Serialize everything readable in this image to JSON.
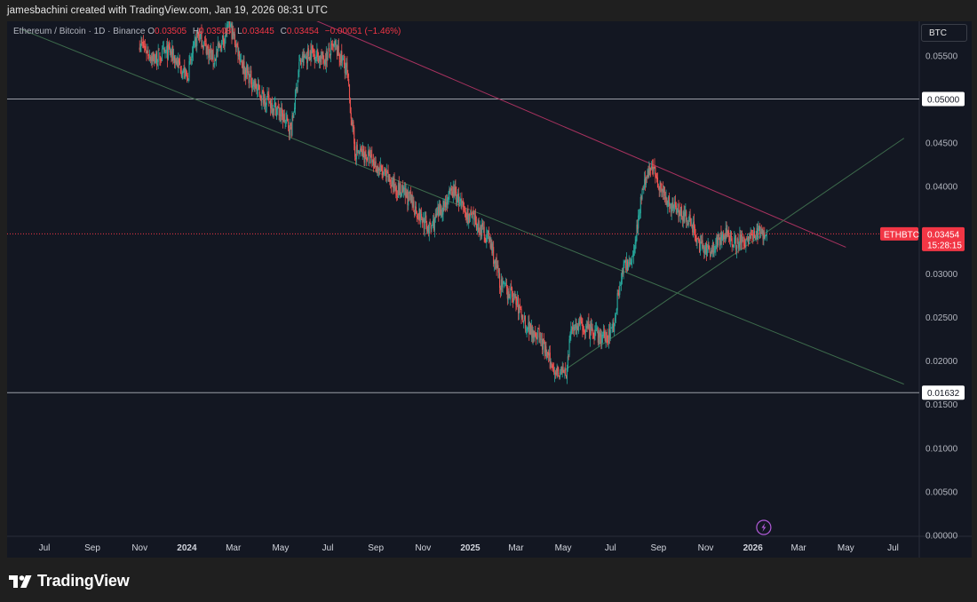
{
  "header": {
    "attribution": "jamesbachini created with TradingView.com, Jan 19, 2026 08:31 UTC"
  },
  "legend": {
    "symbol": "Ethereum / Bitcoin · 1D · Binance",
    "open_label": "O",
    "open": "0.03505",
    "high_label": "H",
    "high": "0.03508",
    "low_label": "L",
    "low": "0.03445",
    "close_label": "C",
    "close": "0.03454",
    "change": "−0.00051 (−1.46%)"
  },
  "currency_button": "BTC",
  "price_tag": {
    "symbol": "ETHBTC",
    "price": "0.03454",
    "countdown": "15:28:15"
  },
  "level_tags": [
    "0.05000",
    "0.01632"
  ],
  "brand": {
    "name": "TradingView"
  },
  "colors": {
    "up": "#26a69a",
    "down": "#ef5350",
    "bg": "#131722",
    "resistance_line": "#a8325f",
    "support_line": "#3d6b4c",
    "horizontal_line": "#c9ccd4",
    "price_line": "#f23645"
  },
  "chart_data": {
    "type": "candlestick",
    "title": "Ethereum / Bitcoin · 1D · Binance",
    "ylim": [
      0,
      0.06
    ],
    "y_ticks": [
      "0.05500",
      "0.04500",
      "0.04000",
      "0.03000",
      "0.02500",
      "0.02000",
      "0.01500",
      "0.01000",
      "0.00500",
      "0.00000"
    ],
    "y_tick_values": [
      0.055,
      0.045,
      0.04,
      0.03,
      0.025,
      0.02,
      0.015,
      0.01,
      0.005,
      0
    ],
    "x_ticks": [
      "Jul",
      "Sep",
      "Nov",
      "2024",
      "Mar",
      "May",
      "Jul",
      "Sep",
      "Nov",
      "2025",
      "Mar",
      "May",
      "Jul",
      "Sep",
      "Nov",
      "2026",
      "Mar",
      "May",
      "Jul"
    ],
    "x_tick_dates": [
      "2023-07-01",
      "2023-09-01",
      "2023-11-01",
      "2024-01-01",
      "2024-03-01",
      "2024-05-01",
      "2024-07-01",
      "2024-09-01",
      "2024-11-01",
      "2025-01-01",
      "2025-03-01",
      "2025-05-01",
      "2025-07-01",
      "2025-09-01",
      "2025-11-01",
      "2026-01-01",
      "2026-03-01",
      "2026-05-01",
      "2026-07-01"
    ],
    "x_tick_bold": [
      "2024",
      "2025",
      "2026"
    ],
    "price_path": [
      [
        "2023-11-01",
        0.0565
      ],
      [
        "2023-11-20",
        0.0545
      ],
      [
        "2023-12-10",
        0.0555
      ],
      [
        "2024-01-01",
        0.0525
      ],
      [
        "2024-01-15",
        0.0575
      ],
      [
        "2024-02-05",
        0.0545
      ],
      [
        "2024-02-25",
        0.0585
      ],
      [
        "2024-03-15",
        0.0535
      ],
      [
        "2024-04-05",
        0.0505
      ],
      [
        "2024-04-25",
        0.049
      ],
      [
        "2024-05-15",
        0.0465
      ],
      [
        "2024-05-25",
        0.054
      ],
      [
        "2024-06-10",
        0.0555
      ],
      [
        "2024-06-25",
        0.0545
      ],
      [
        "2024-07-10",
        0.056
      ],
      [
        "2024-07-25",
        0.0535
      ],
      [
        "2024-08-05",
        0.044
      ],
      [
        "2024-08-20",
        0.0435
      ],
      [
        "2024-09-05",
        0.042
      ],
      [
        "2024-09-25",
        0.04
      ],
      [
        "2024-10-15",
        0.0385
      ],
      [
        "2024-10-28",
        0.0365
      ],
      [
        "2024-11-10",
        0.035
      ],
      [
        "2024-11-25",
        0.0375
      ],
      [
        "2024-12-10",
        0.0395
      ],
      [
        "2024-12-25",
        0.037
      ],
      [
        "2025-01-10",
        0.0355
      ],
      [
        "2025-01-25",
        0.034
      ],
      [
        "2025-02-10",
        0.0285
      ],
      [
        "2025-02-25",
        0.0275
      ],
      [
        "2025-03-15",
        0.024
      ],
      [
        "2025-03-30",
        0.023
      ],
      [
        "2025-04-15",
        0.0195
      ],
      [
        "2025-04-25",
        0.0188
      ],
      [
        "2025-05-05",
        0.0185
      ],
      [
        "2025-05-12",
        0.024
      ],
      [
        "2025-05-25",
        0.024
      ],
      [
        "2025-06-10",
        0.023
      ],
      [
        "2025-06-25",
        0.0225
      ],
      [
        "2025-07-05",
        0.024
      ],
      [
        "2025-07-15",
        0.03
      ],
      [
        "2025-07-30",
        0.032
      ],
      [
        "2025-08-10",
        0.039
      ],
      [
        "2025-08-22",
        0.0425
      ],
      [
        "2025-09-01",
        0.0405
      ],
      [
        "2025-09-15",
        0.038
      ],
      [
        "2025-10-01",
        0.037
      ],
      [
        "2025-10-15",
        0.0355
      ],
      [
        "2025-10-25",
        0.033
      ],
      [
        "2025-11-05",
        0.0325
      ],
      [
        "2025-11-20",
        0.034
      ],
      [
        "2025-12-01",
        0.0345
      ],
      [
        "2025-12-10",
        0.0335
      ],
      [
        "2025-12-25",
        0.034
      ],
      [
        "2026-01-10",
        0.0348
      ],
      [
        "2026-01-19",
        0.03454
      ]
    ],
    "trendlines": [
      {
        "name": "resistance",
        "color": "#a8325f",
        "points": [
          [
            "2024-05-20",
            0.06
          ],
          [
            "2026-05-01",
            0.033
          ]
        ]
      },
      {
        "name": "lower-channel",
        "color": "#3d6b4c",
        "points": [
          [
            "2023-06-01",
            0.058
          ],
          [
            "2026-07-15",
            0.0173
          ]
        ]
      },
      {
        "name": "support",
        "color": "#3d6b4c",
        "points": [
          [
            "2025-05-01",
            0.0188
          ],
          [
            "2026-07-15",
            0.0455
          ]
        ]
      }
    ],
    "horizontal_levels": [
      0.05,
      0.01632
    ],
    "last_price": 0.03454,
    "last_date": "2026-01-19"
  }
}
